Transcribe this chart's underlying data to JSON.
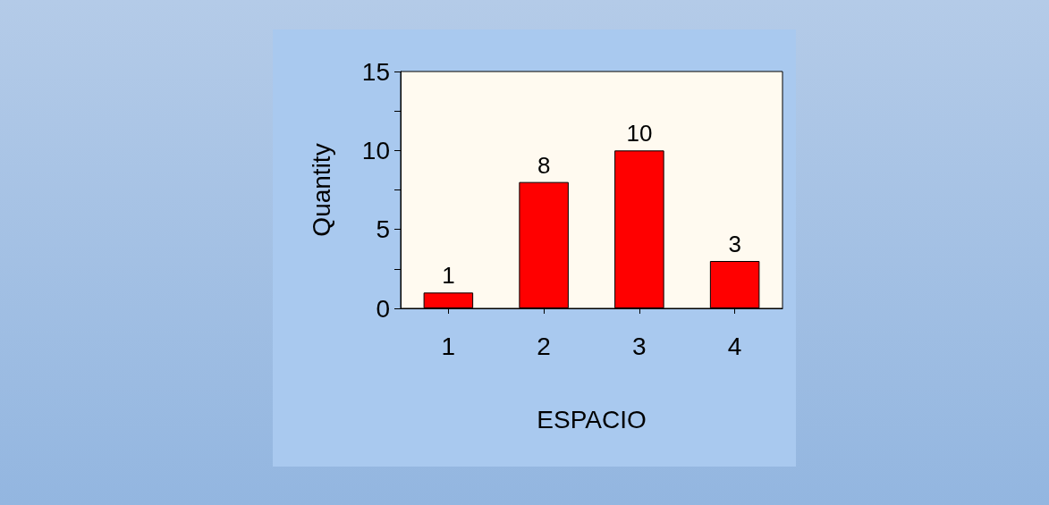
{
  "chart_data": {
    "type": "bar",
    "xlabel": "ESPACIO",
    "ylabel": "Quantity",
    "categories": [
      "1",
      "2",
      "3",
      "4"
    ],
    "values": [
      1,
      8,
      10,
      3
    ],
    "color": "#ff0000",
    "ylim": [
      0,
      15
    ],
    "yticks": [
      0,
      {
        "value": 2.5,
        "label": null
      },
      5,
      {
        "value": 7.5,
        "label": null
      },
      10,
      {
        "value": 12.5,
        "label": null
      },
      15
    ],
    "data_labels": true,
    "grid": false
  }
}
